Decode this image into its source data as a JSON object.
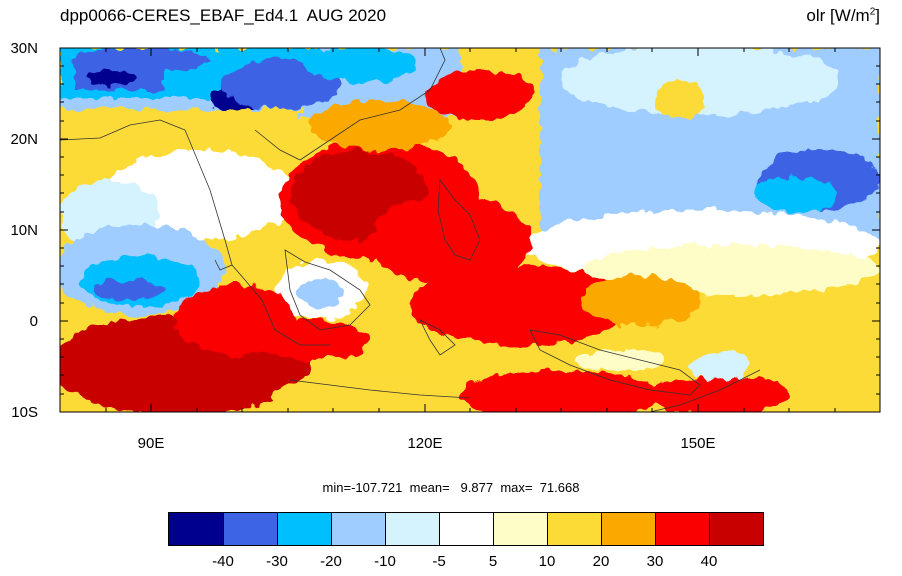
{
  "title": {
    "left": "dpp0066-CERES_EBAF_Ed4.1  AUG 2020",
    "variable": "olr",
    "units_base": "[W/m",
    "units_sup": "2",
    "units_close": "]"
  },
  "axes": {
    "lat_labels": [
      "30N",
      "20N",
      "10N",
      "0",
      "10S"
    ],
    "lon_labels": [
      "90E",
      "120E",
      "150E"
    ]
  },
  "stats": {
    "text": "min=-107.721  mean=   9.877  max=  71.668"
  },
  "colorbar": {
    "colors": [
      "#00008f",
      "#3c64e4",
      "#00bfff",
      "#9fcdff",
      "#d5f2ff",
      "#ffffff",
      "#fefdc8",
      "#fcdb37",
      "#fba800",
      "#fb0000",
      "#c80000"
    ],
    "labels": [
      "-40",
      "-30",
      "-20",
      "-10",
      "-5",
      "5",
      "10",
      "20",
      "30",
      "40"
    ]
  },
  "chart_data": {
    "type": "heatmap",
    "title": "dpp0066-CERES_EBAF_Ed4.1  AUG 2020",
    "variable": "olr [W/m2]",
    "lat_range": [
      -10,
      30
    ],
    "lon_range": [
      80,
      170
    ],
    "contour_levels": [
      -40,
      -30,
      -20,
      -10,
      -5,
      5,
      10,
      20,
      30,
      40
    ],
    "min": -107.721,
    "mean": 9.877,
    "max": 71.668
  }
}
